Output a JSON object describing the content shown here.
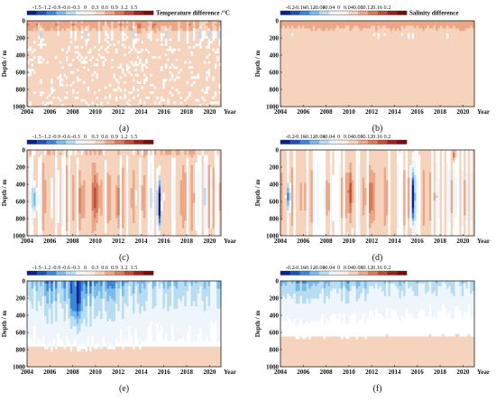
{
  "figure": {
    "background": "#ffffff",
    "colorbar_colors": [
      "#0b1f8f",
      "#1f4fb8",
      "#3d86d6",
      "#7ab9e8",
      "#b8dcf2",
      "#eef6fb",
      "#fbeee4",
      "#f6d3bd",
      "#eaa888",
      "#d97a5c",
      "#c24a37",
      "#a11f1f",
      "#7a0b0b"
    ]
  },
  "chart_data": [
    {
      "id": "a",
      "type": "heatmap",
      "panel_label": "(a)",
      "colorbar": {
        "title": "Temperature difference /°C",
        "ticks": [
          "-1.5",
          "-1.2",
          "-0.9",
          "-0.6",
          "-0.3",
          "0",
          "0.3",
          "0.6",
          "0.9",
          "1.2",
          "1.5"
        ],
        "range": [
          -1.5,
          1.5
        ]
      },
      "x": {
        "ticks": [
          "2004",
          "2006",
          "2008",
          "2010",
          "2012",
          "2014",
          "2016",
          "2018",
          "2020"
        ],
        "label": "Year",
        "range": [
          2004,
          2021
        ]
      },
      "y": {
        "ticks": [
          "0",
          "200",
          "400",
          "600",
          "800",
          "1000"
        ],
        "label": "Depth / m",
        "range": [
          0,
          1000
        ],
        "inverted": true
      },
      "pattern": "Mostly near zero with slight warm (positive) values in the upper 100 m; small scattered cool anomalies near the surface."
    },
    {
      "id": "b",
      "type": "heatmap",
      "panel_label": "(b)",
      "colorbar": {
        "title": "Salinity difference",
        "ticks": [
          "-0.2",
          "-0.16",
          "-0.12",
          "-0.08",
          "-0.04",
          "0",
          "0.04",
          "0.08",
          "0.12",
          "0.16",
          "0.2"
        ],
        "range": [
          -0.2,
          0.2
        ]
      },
      "x": {
        "ticks": [
          "2004",
          "2006",
          "2008",
          "2010",
          "2012",
          "2014",
          "2016",
          "2018",
          "2020"
        ],
        "label": "Year",
        "range": [
          2004,
          2021
        ]
      },
      "y": {
        "ticks": [
          "0",
          "200",
          "400",
          "600",
          "800",
          "1000"
        ],
        "label": "Depth / m",
        "range": [
          0,
          1000
        ],
        "inverted": true
      },
      "pattern": "Weak positive salinity differences almost everywhere, slightly stronger near surface and below 600 m."
    },
    {
      "id": "c",
      "type": "heatmap",
      "panel_label": "(c)",
      "colorbar": {
        "title": "",
        "ticks": [
          "-1.5",
          "-1.2",
          "-0.9",
          "-0.6",
          "-0.3",
          "0",
          "0.3",
          "0.6",
          "0.9",
          "1.2",
          "1.5"
        ],
        "range": [
          -1.5,
          1.5
        ]
      },
      "x": {
        "ticks": [
          "2004",
          "2006",
          "2008",
          "2010",
          "2012",
          "2014",
          "2016",
          "2018",
          "2020"
        ],
        "label": "Year",
        "range": [
          2004,
          2021
        ]
      },
      "y": {
        "ticks": [
          "0",
          "200",
          "400",
          "600",
          "800",
          "1000"
        ],
        "label": "Depth / m",
        "range": [
          0,
          1000
        ],
        "inverted": true
      },
      "pattern": "Vertical bands of warm and cool anomalies; strong cold column near 2015.5 from 300–900 m; warm columns near 2010 and 2012."
    },
    {
      "id": "d",
      "type": "heatmap",
      "panel_label": "(d)",
      "colorbar": {
        "title": "",
        "ticks": [
          "-0.2",
          "-0.16",
          "-0.12",
          "-0.08",
          "-0.04",
          "0",
          "0.04",
          "0.08",
          "0.12",
          "0.16",
          "0.2"
        ],
        "range": [
          -0.2,
          0.2
        ]
      },
      "x": {
        "ticks": [
          "2004",
          "2006",
          "2008",
          "2010",
          "2012",
          "2014",
          "2016",
          "2018",
          "2020"
        ],
        "label": "Year",
        "range": [
          2004,
          2021
        ]
      },
      "y": {
        "ticks": [
          "0",
          "200",
          "400",
          "600",
          "800",
          "1000"
        ],
        "label": "Depth / m",
        "range": [
          0,
          1000
        ],
        "inverted": true
      },
      "pattern": "Salinity bands mirroring (c); strong negative column near 2015.5, positive columns near 2010 and 2012."
    },
    {
      "id": "e",
      "type": "heatmap",
      "panel_label": "(e)",
      "colorbar": {
        "title": "",
        "ticks": [
          "-1.5",
          "-1.2",
          "-0.9",
          "-0.6",
          "-0.3",
          "0",
          "0.3",
          "0.6",
          "0.9",
          "1.2",
          "1.5"
        ],
        "range": [
          -1.5,
          1.5
        ]
      },
      "x": {
        "ticks": [
          "2004",
          "2006",
          "2008",
          "2010",
          "2012",
          "2014",
          "2016",
          "2018",
          "2020"
        ],
        "label": "Year",
        "range": [
          2004,
          2021
        ]
      },
      "y": {
        "ticks": [
          "0",
          "200",
          "400",
          "600",
          "800",
          "1000"
        ],
        "label": "Depth / m",
        "range": [
          0,
          1000
        ],
        "inverted": true
      },
      "pattern": "Predominantly negative (cool) differences in the upper 600 m, strongest 2005–2012; weakly positive below 800 m."
    },
    {
      "id": "f",
      "type": "heatmap",
      "panel_label": "(f)",
      "colorbar": {
        "title": "",
        "ticks": [
          "-0.2",
          "-0.16",
          "-0.12",
          "-0.08",
          "-0.04",
          "0",
          "0.04",
          "0.08",
          "0.12",
          "0.16",
          "0.2"
        ],
        "range": [
          -0.2,
          0.2
        ]
      },
      "x": {
        "ticks": [
          "2004",
          "2006",
          "2008",
          "2010",
          "2012",
          "2014",
          "2016",
          "2018",
          "2020"
        ],
        "label": "Year",
        "range": [
          2004,
          2021
        ]
      },
      "y": {
        "ticks": [
          "0",
          "200",
          "400",
          "600",
          "800",
          "1000"
        ],
        "label": "Depth / m",
        "range": [
          0,
          1000
        ],
        "inverted": true
      },
      "pattern": "Negative salinity differences in the upper 400 m; weakly positive below about 600 m."
    }
  ]
}
